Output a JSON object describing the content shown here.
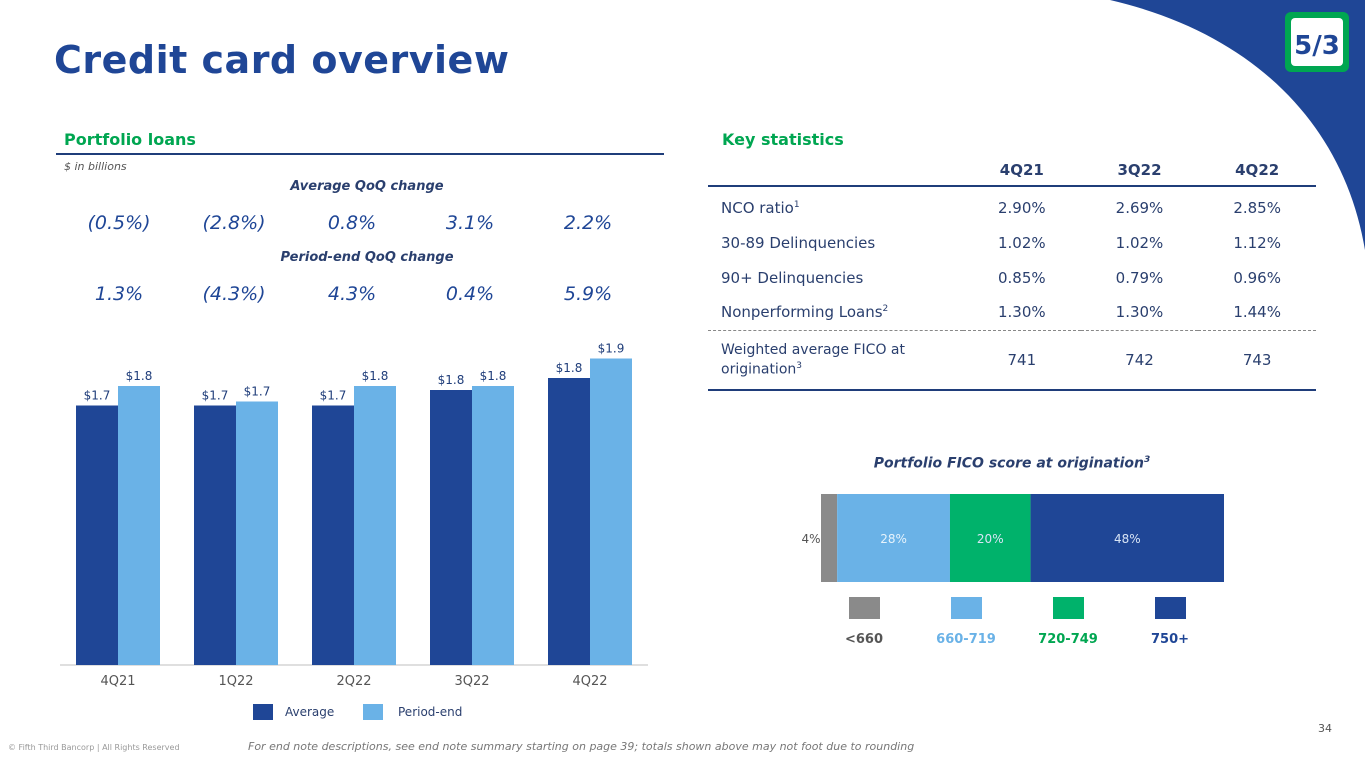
{
  "title": "Credit card overview",
  "portfolio": {
    "heading": "Portfolio loans",
    "units": "$ in billions",
    "avg_qoq_heading": "Average QoQ change",
    "avg_qoq": [
      "(0.5%)",
      "(2.8%)",
      "0.8%",
      "3.1%",
      "2.2%"
    ],
    "pe_qoq_heading": "Period-end QoQ change",
    "pe_qoq": [
      "1.3%",
      "(4.3%)",
      "4.3%",
      "0.4%",
      "5.9%"
    ]
  },
  "chart_data": [
    {
      "type": "bar",
      "categories": [
        "4Q21",
        "1Q22",
        "2Q22",
        "3Q22",
        "4Q22"
      ],
      "series": [
        {
          "name": "Average",
          "values": [
            1.7,
            1.7,
            1.7,
            1.8,
            1.8
          ],
          "labels": [
            "$1.7",
            "$1.7",
            "$1.7",
            "$1.8",
            "$1.8"
          ],
          "color": "#1f4696"
        },
        {
          "name": "Period-end",
          "values": [
            1.8,
            1.7,
            1.8,
            1.8,
            1.9
          ],
          "labels": [
            "$1.8",
            "$1.7",
            "$1.8",
            "$1.8",
            "$1.9"
          ],
          "color": "#6ab2e7"
        }
      ],
      "ylabel": "$ in billions",
      "legend": "bottom"
    },
    {
      "type": "bar",
      "title": "Portfolio FICO score at origination",
      "title_sup": "3",
      "stacked": true,
      "categories": [
        "<660",
        "660-719",
        "720-749",
        "750+"
      ],
      "values": [
        4,
        28,
        20,
        48
      ],
      "labels": [
        "4%",
        "28%",
        "20%",
        "48%"
      ],
      "colors": [
        "#8a8a8a",
        "#6ab2e7",
        "#00b26b",
        "#1f4696"
      ],
      "legend": "bottom"
    }
  ],
  "stats": {
    "heading": "Key statistics",
    "columns": [
      "4Q21",
      "3Q22",
      "4Q22"
    ],
    "rows": [
      {
        "label": "NCO ratio",
        "sup": "1",
        "values": [
          "2.90%",
          "2.69%",
          "2.85%"
        ]
      },
      {
        "label": "30-89 Delinquencies",
        "sup": "",
        "values": [
          "1.02%",
          "1.02%",
          "1.12%"
        ]
      },
      {
        "label": "90+ Delinquencies",
        "sup": "",
        "values": [
          "0.85%",
          "0.79%",
          "0.96%"
        ]
      },
      {
        "label": "Nonperforming Loans",
        "sup": "2",
        "values": [
          "1.30%",
          "1.30%",
          "1.44%"
        ]
      }
    ],
    "fico_row": {
      "label_line1": "Weighted average FICO at",
      "label_line2": "origination",
      "sup": "3",
      "values": [
        "741",
        "742",
        "743"
      ]
    }
  },
  "colors": {
    "navy": "#1f4696",
    "light_blue": "#6ab2e7",
    "green": "#00a651",
    "gray": "#8a8a8a"
  },
  "footnote": "For end note descriptions, see end note summary starting on page 39; totals shown above may not foot due to rounding",
  "copyright": "© Fifth Third Bancorp | All Rights Reserved",
  "page_number": "34",
  "logo_text": "5/3"
}
